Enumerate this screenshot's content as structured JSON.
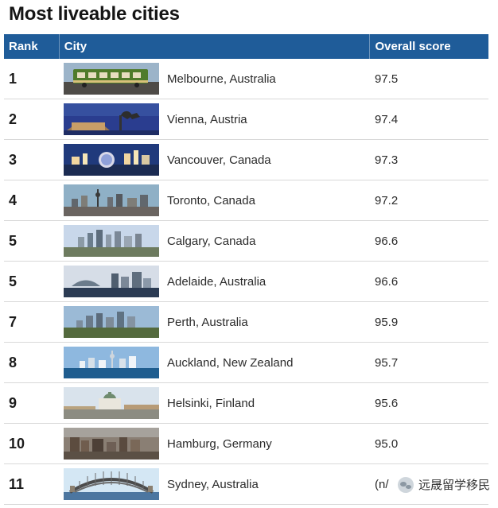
{
  "title": "Most liveable cities",
  "headers": {
    "rank": "Rank",
    "city": "City",
    "score": "Overall score"
  },
  "rows": [
    {
      "rank": "1",
      "city": "Melbourne, Australia",
      "score": "97.5"
    },
    {
      "rank": "2",
      "city": "Vienna, Austria",
      "score": "97.4"
    },
    {
      "rank": "3",
      "city": "Vancouver, Canada",
      "score": "97.3"
    },
    {
      "rank": "4",
      "city": "Toronto, Canada",
      "score": "97.2"
    },
    {
      "rank": "5",
      "city": "Calgary, Canada",
      "score": "96.6"
    },
    {
      "rank": "5",
      "city": "Adelaide, Australia",
      "score": "96.6"
    },
    {
      "rank": "7",
      "city": "Perth, Australia",
      "score": "95.9"
    },
    {
      "rank": "8",
      "city": "Auckland, New Zealand",
      "score": "95.7"
    },
    {
      "rank": "9",
      "city": "Helsinki, Finland",
      "score": "95.6"
    },
    {
      "rank": "10",
      "city": "Hamburg, Germany",
      "score": "95.0"
    },
    {
      "rank": "11",
      "city": "Sydney, Australia",
      "score": "(n/"
    }
  ],
  "watermark": {
    "text": "远晟留学移民",
    "icon": "chat-bubble-icon"
  },
  "colors": {
    "header_bg": "#1f5c99",
    "header_text": "#ffffff"
  }
}
